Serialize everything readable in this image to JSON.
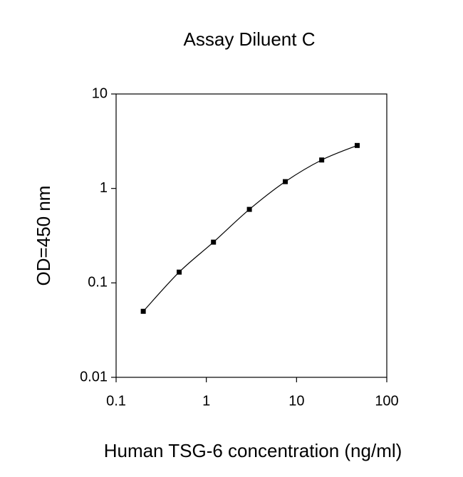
{
  "chart_data": {
    "type": "scatter",
    "title": "Assay Diluent C",
    "x_label": "Human TSG-6 concentration (ng/ml)",
    "y_label": "OD=450 nm",
    "x": [
      0.2,
      0.5,
      1.2,
      3,
      7.5,
      19,
      47
    ],
    "values": [
      0.05,
      0.13,
      0.27,
      0.6,
      1.18,
      2.0,
      2.85
    ],
    "color": "#000000",
    "fit_line": true,
    "x_log": true,
    "y_log": true,
    "xlim": [
      0.1,
      100
    ],
    "xticks": [
      0.1,
      1,
      10,
      100
    ],
    "ylim": [
      0.01,
      10
    ],
    "yticks": [
      0.01,
      0.1,
      1,
      10
    ]
  }
}
